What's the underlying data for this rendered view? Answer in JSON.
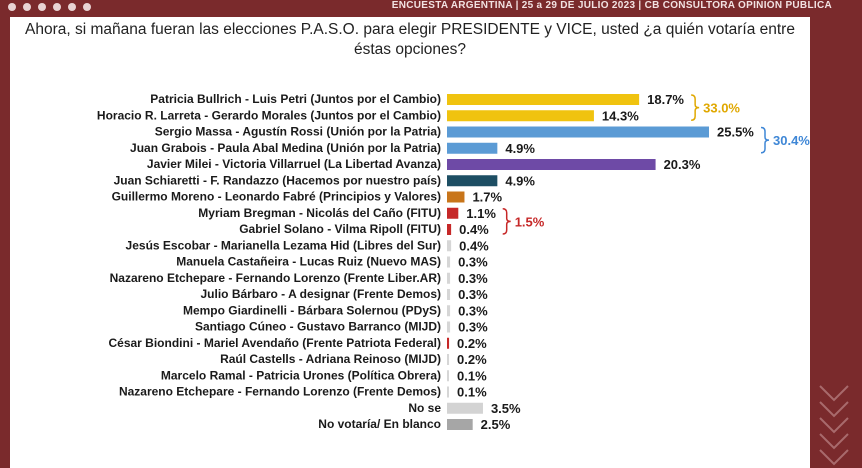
{
  "header": {
    "source_text": "ENCUESTA ARGENTINA | 25 a 29 DE JULIO 2023 | CB CONSULTORA OPINIÓN PÚBLICA"
  },
  "question": "Ahora, si mañana fueran las elecciones P.A.S.O. para elegir PRESIDENTE y VICE, usted ¿a quién votaría entre éstas opciones?",
  "chart_data": {
    "type": "bar",
    "orientation": "horizontal",
    "title": "Ahora, si mañana fueran las elecciones P.A.S.O. para elegir PRESIDENTE y VICE, usted ¿a quién votaría entre éstas opciones?",
    "xlim": [
      0,
      25.5
    ],
    "grid": false,
    "categories": [
      "Patricia Bullrich - Luis Petri (Juntos por el Cambio)",
      "Horacio R. Larreta - Gerardo Morales (Juntos por el Cambio)",
      "Sergio Massa - Agustín Rossi (Unión por la Patria)",
      "Juan Grabois - Paula Abal Medina (Unión por la Patria)",
      "Javier Milei - Victoria Villarruel (La Libertad Avanza)",
      "Juan Schiaretti - F. Randazzo (Hacemos por nuestro país)",
      "Guillermo Moreno - Leonardo Fabré (Principios y Valores)",
      "Myriam Bregman - Nicolás del Caño (FITU)",
      "Gabriel Solano - Vilma Ripoll (FITU)",
      "Jesús Escobar - Marianella Lezama Hid (Libres del Sur)",
      "Manuela Castañeira - Lucas Ruiz (Nuevo MAS)",
      "Nazareno Etchepare - Fernando Lorenzo (Frente Liber.AR)",
      "Julio Bárbaro - A designar (Frente Demos)",
      "Mempo Giardinelli - Bárbara Solernou (PDyS)",
      "Santiago Cúneo - Gustavo Barranco (MIJD)",
      "César Biondini - Mariel Avendaño (Frente Patriota Federal)",
      "Raúl Castells - Adriana Reinoso (MIJD)",
      "Marcelo Ramal - Patricia Urones (Política Obrera)",
      "Nazareno Etchepare - Fernando Lorenzo (Frente Demos)",
      "No se",
      "No votaría/ En blanco"
    ],
    "values": [
      18.7,
      14.3,
      25.5,
      4.9,
      20.3,
      4.9,
      1.7,
      1.1,
      0.4,
      0.4,
      0.3,
      0.3,
      0.3,
      0.3,
      0.3,
      0.2,
      0.2,
      0.1,
      0.1,
      3.5,
      2.5
    ],
    "value_labels": [
      "18.7%",
      "14.3%",
      "25.5%",
      "4.9%",
      "20.3%",
      "4.9%",
      "1.7%",
      "1.1%",
      "0.4%",
      "0.4%",
      "0.3%",
      "0.3%",
      "0.3%",
      "0.3%",
      "0.3%",
      "0.2%",
      "0.2%",
      "0.1%",
      "0.1%",
      "3.5%",
      "2.5%"
    ],
    "bar_colors": [
      "#f0c30f",
      "#f0c30f",
      "#5b9bd5",
      "#5b9bd5",
      "#6e4aa6",
      "#1d4e63",
      "#c8751a",
      "#c62828",
      "#c62828",
      "#d6d6d6",
      "#d6d6d6",
      "#d6d6d6",
      "#d6d6d6",
      "#d6d6d6",
      "#d6d6d6",
      "#c62828",
      "#d6d6d6",
      "#d6d6d6",
      "#d6d6d6",
      "#d3d3d3",
      "#a6a6a6"
    ],
    "group_totals": [
      {
        "label": "33.0%",
        "from": 0,
        "to": 1,
        "color": "#e0a800"
      },
      {
        "label": "30.4%",
        "from": 2,
        "to": 3,
        "color": "#3f87d6"
      },
      {
        "label": "1.5%",
        "from": 7,
        "to": 8,
        "color": "#c62828"
      }
    ]
  }
}
